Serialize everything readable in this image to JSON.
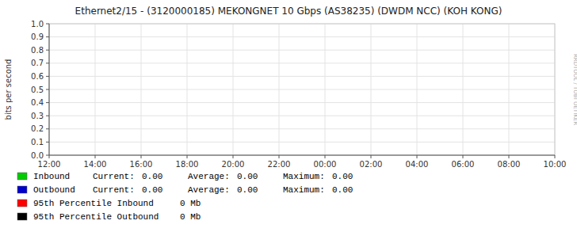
{
  "chart_data": {
    "type": "line",
    "title": "Ethernet2/15 - (3120000185) MEKONGNET 10 Gbps (AS38235) (DWDM NCC) (KOH KONG)",
    "y_label": "bits per second",
    "categories": [
      "12:00",
      "14:00",
      "16:00",
      "18:00",
      "20:00",
      "22:00",
      "00:00",
      "02:00",
      "04:00",
      "06:00",
      "08:00",
      "10:00"
    ],
    "ylim": [
      0,
      1
    ],
    "yticks": [
      {
        "value": 0,
        "label": "0.0"
      },
      0.1,
      0.2,
      0.3,
      0.4,
      0.5,
      0.6,
      0.7,
      0.8,
      0.9,
      {
        "value": 1,
        "label": "1.0"
      }
    ],
    "grid": true,
    "legend": "bottom-left",
    "stat_labels": [
      "Current:",
      "Average:",
      "Maximum:"
    ],
    "series": [
      {
        "name": "Inbound",
        "color": "#00cc00",
        "stats": [
          {
            "value": 0,
            "label": "0.00"
          },
          {
            "value": 0,
            "label": "0.00"
          },
          {
            "value": 0,
            "label": "0.00"
          }
        ]
      },
      {
        "name": "Outbound",
        "color": "#0000cc",
        "stats": [
          {
            "value": 0,
            "label": "0.00"
          },
          {
            "value": 0,
            "label": "0.00"
          },
          {
            "value": 0,
            "label": "0.00"
          }
        ]
      }
    ],
    "percentiles": [
      {
        "name": "95th Percentile Inbound",
        "color": "#ff0000",
        "value": 0,
        "label": "0 Mb"
      },
      {
        "name": "95th Percentile Outbound",
        "color": "#000000",
        "value": 0,
        "label": "0 Mb"
      }
    ],
    "annotations": [
      "RRDTOOL / TOBI OETIKER"
    ]
  }
}
